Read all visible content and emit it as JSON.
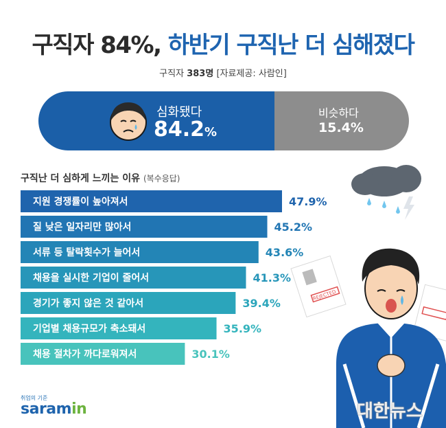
{
  "header": {
    "title_part1": "구직자 84%,",
    "title_part2": "하반기 구직난 더 심해졌다",
    "subtitle_prefix": "구직자",
    "subtitle_count": "383명",
    "subtitle_source": "[자료제공: 사람인]"
  },
  "summary": {
    "worse_label": "심화됐다",
    "worse_value": "84.2",
    "worse_unit": "%",
    "same_label": "비슷하다",
    "same_value": "15.4%"
  },
  "chart_data": {
    "type": "bar",
    "title": "구직난 더 심하게 느끼는 이유",
    "note": "(복수응답)",
    "categories": [
      "지원 경쟁률이 높아져서",
      "질 낮은 일자리만 많아서",
      "서류 등 탈락횟수가 늘어서",
      "채용을 실시한 기업이 줄어서",
      "경기가 좋지 않은 것 같아서",
      "기업별 채용규모가 축소돼서",
      "채용 절차가 까다로워져서"
    ],
    "values": [
      47.9,
      45.2,
      43.6,
      41.3,
      39.4,
      35.9,
      30.1
    ],
    "value_labels": [
      "47.9%",
      "45.2%",
      "43.6%",
      "41.3%",
      "39.4%",
      "35.9%",
      "30.1%"
    ],
    "unit": "%",
    "colors": [
      "#1f64ad",
      "#2175b3",
      "#2385b6",
      "#2796b9",
      "#2ba5bb",
      "#34b4bd",
      "#48c3bc"
    ]
  },
  "illustration": {
    "rejected_stamp": "REJECTED"
  },
  "logo": {
    "small": "취업의 기준",
    "main": "saram",
    "accent": "in"
  },
  "watermark": "대한뉴스"
}
